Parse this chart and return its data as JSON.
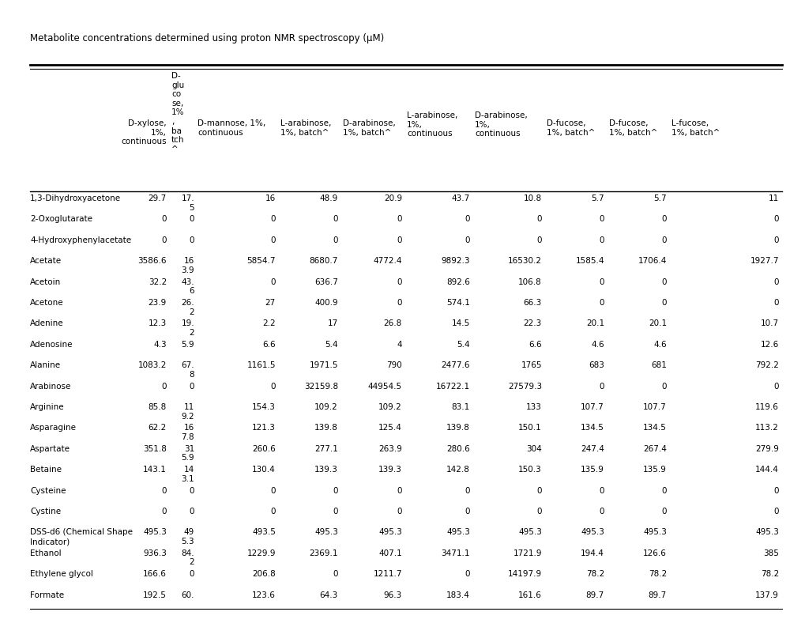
{
  "title": "Metabolite concentrations determined using proton NMR spectroscopy (μM)",
  "rows": [
    {
      "name": "1,3-Dihydroxyacetone",
      "v0": "29.7",
      "v1": "17.\n5",
      "v2": "16",
      "v3": "48.9",
      "v4": "20.9",
      "v5": "43.7",
      "v6": "10.8",
      "v7": "5.7",
      "v8": "5.7",
      "v9": "11"
    },
    {
      "name": "2-Oxoglutarate",
      "v0": "0",
      "v1": "0",
      "v2": "0",
      "v3": "0",
      "v4": "0",
      "v5": "0",
      "v6": "0",
      "v7": "0",
      "v8": "0",
      "v9": "0"
    },
    {
      "name": "4-Hydroxyphenylacetate",
      "v0": "0",
      "v1": "0",
      "v2": "0",
      "v3": "0",
      "v4": "0",
      "v5": "0",
      "v6": "0",
      "v7": "0",
      "v8": "0",
      "v9": "0"
    },
    {
      "name": "Acetate",
      "v0": "3586.6",
      "v1": "16\n3.9",
      "v2": "5854.7",
      "v3": "8680.7",
      "v4": "4772.4",
      "v5": "9892.3",
      "v6": "16530.2",
      "v7": "1585.4",
      "v8": "1706.4",
      "v9": "1927.7"
    },
    {
      "name": "Acetoin",
      "v0": "32.2",
      "v1": "43.\n6",
      "v2": "0",
      "v3": "636.7",
      "v4": "0",
      "v5": "892.6",
      "v6": "106.8",
      "v7": "0",
      "v8": "0",
      "v9": "0"
    },
    {
      "name": "Acetone",
      "v0": "23.9",
      "v1": "26.\n2",
      "v2": "27",
      "v3": "400.9",
      "v4": "0",
      "v5": "574.1",
      "v6": "66.3",
      "v7": "0",
      "v8": "0",
      "v9": "0"
    },
    {
      "name": "Adenine",
      "v0": "12.3",
      "v1": "19.\n2",
      "v2": "2.2",
      "v3": "17",
      "v4": "26.8",
      "v5": "14.5",
      "v6": "22.3",
      "v7": "20.1",
      "v8": "20.1",
      "v9": "10.7"
    },
    {
      "name": "Adenosine",
      "v0": "4.3",
      "v1": "5.9",
      "v2": "6.6",
      "v3": "5.4",
      "v4": "4",
      "v5": "5.4",
      "v6": "6.6",
      "v7": "4.6",
      "v8": "4.6",
      "v9": "12.6"
    },
    {
      "name": "Alanine",
      "v0": "1083.2",
      "v1": "67.\n8",
      "v2": "1161.5",
      "v3": "1971.5",
      "v4": "790",
      "v5": "2477.6",
      "v6": "1765",
      "v7": "683",
      "v8": "681",
      "v9": "792.2"
    },
    {
      "name": "Arabinose",
      "v0": "0",
      "v1": "0",
      "v2": "0",
      "v3": "32159.8",
      "v4": "44954.5",
      "v5": "16722.1",
      "v6": "27579.3",
      "v7": "0",
      "v8": "0",
      "v9": "0"
    },
    {
      "name": "Arginine",
      "v0": "85.8",
      "v1": "11\n9.2",
      "v2": "154.3",
      "v3": "109.2",
      "v4": "109.2",
      "v5": "83.1",
      "v6": "133",
      "v7": "107.7",
      "v8": "107.7",
      "v9": "119.6"
    },
    {
      "name": "Asparagine",
      "v0": "62.2",
      "v1": "16\n7.8",
      "v2": "121.3",
      "v3": "139.8",
      "v4": "125.4",
      "v5": "139.8",
      "v6": "150.1",
      "v7": "134.5",
      "v8": "134.5",
      "v9": "113.2"
    },
    {
      "name": "Aspartate",
      "v0": "351.8",
      "v1": "31\n5.9",
      "v2": "260.6",
      "v3": "277.1",
      "v4": "263.9",
      "v5": "280.6",
      "v6": "304",
      "v7": "247.4",
      "v8": "267.4",
      "v9": "279.9"
    },
    {
      "name": "Betaine",
      "v0": "143.1",
      "v1": "14\n3.1",
      "v2": "130.4",
      "v3": "139.3",
      "v4": "139.3",
      "v5": "142.8",
      "v6": "150.3",
      "v7": "135.9",
      "v8": "135.9",
      "v9": "144.4"
    },
    {
      "name": "Cysteine",
      "v0": "0",
      "v1": "0",
      "v2": "0",
      "v3": "0",
      "v4": "0",
      "v5": "0",
      "v6": "0",
      "v7": "0",
      "v8": "0",
      "v9": "0"
    },
    {
      "name": "Cystine",
      "v0": "0",
      "v1": "0",
      "v2": "0",
      "v3": "0",
      "v4": "0",
      "v5": "0",
      "v6": "0",
      "v7": "0",
      "v8": "0",
      "v9": "0"
    },
    {
      "name": "DSS-d6 (Chemical Shape\nIndicator)",
      "v0": "495.3",
      "v1": "49\n5.3",
      "v2": "493.5",
      "v3": "495.3",
      "v4": "495.3",
      "v5": "495.3",
      "v6": "495.3",
      "v7": "495.3",
      "v8": "495.3",
      "v9": "495.3"
    },
    {
      "name": "Ethanol",
      "v0": "936.3",
      "v1": "84.\n2",
      "v2": "1229.9",
      "v3": "2369.1",
      "v4": "407.1",
      "v5": "3471.1",
      "v6": "1721.9",
      "v7": "194.4",
      "v8": "126.6",
      "v9": "385"
    },
    {
      "name": "Ethylene glycol",
      "v0": "166.6",
      "v1": "0",
      "v2": "206.8",
      "v3": "0",
      "v4": "1211.7",
      "v5": "0",
      "v6": "14197.9",
      "v7": "78.2",
      "v8": "78.2",
      "v9": "78.2"
    },
    {
      "name": "Formate",
      "v0": "192.5",
      "v1": "60.",
      "v2": "123.6",
      "v3": "64.3",
      "v4": "96.3",
      "v5": "183.4",
      "v6": "161.6",
      "v7": "89.7",
      "v8": "89.7",
      "v9": "137.9"
    }
  ],
  "font_size": 7.5,
  "title_font_size": 8.5
}
